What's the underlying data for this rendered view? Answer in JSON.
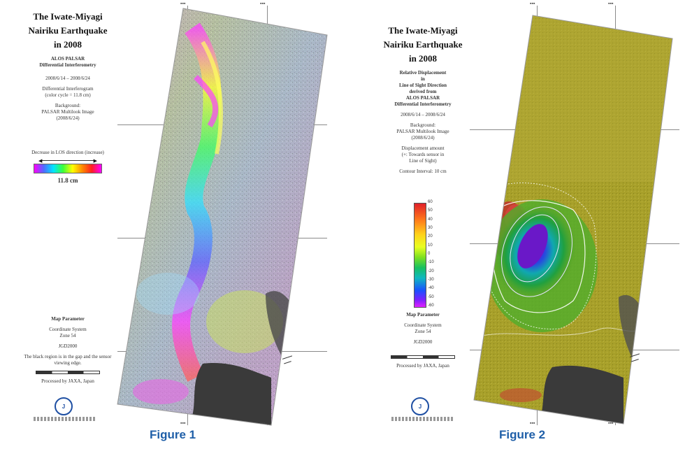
{
  "figure1": {
    "title_lines": [
      "The Iwate-Miyagi",
      "Nairiku Earthquake",
      "in 2008"
    ],
    "sensor": "ALOS PALSAR",
    "method": "Differential Interferometry",
    "dates": "2008/6/14 – 2008/6/24",
    "interferogram_lines": [
      "Differential Interferogram",
      "(color cycle = 11.8 cm)"
    ],
    "background_lines": [
      "Background:",
      "PALSAR Multilook Image",
      "(2008/6/24)"
    ],
    "scale_caption": "Decrease in LOS direction (increase)",
    "color_cycle": "11.8 cm",
    "map_params_title": "Map Parameter",
    "projection_lines": [
      "Coordinate System",
      "Zone 54"
    ],
    "datum": "JGD2000",
    "footnote": "The black region is in the gap and the sensor viewing edge.",
    "processed_by": "Processed by JAXA, Japan",
    "label": "Figure 1"
  },
  "figure2": {
    "title_lines": [
      "The Iwate-Miyagi",
      "Nairiku Earthquake",
      "in 2008"
    ],
    "description_lines": [
      "Relative Displacement",
      "in",
      "Line of Sight Direction",
      "derived from",
      "ALOS PALSAR",
      "Differential Interferometry"
    ],
    "dates": "2008/6/14 – 2008/6/24",
    "background_lines": [
      "Background:",
      "PALSAR Multilook Image",
      "(2008/6/24)"
    ],
    "displacement_lines": [
      "Displacement amount",
      "(+: Towards sensor in",
      "Line of Sight)"
    ],
    "contour_interval": "Contour Interval: 10 cm",
    "colorbar_ticks": [
      "60",
      "50",
      "40",
      "30",
      "20",
      "10",
      "0",
      "-10",
      "-20",
      "-30",
      "-40",
      "-50",
      "-60"
    ],
    "map_params_title": "Map Parameter",
    "projection_lines": [
      "Coordinate System",
      "Zone 54"
    ],
    "datum": "JGD2000",
    "processed_by": "Processed by JAXA, Japan",
    "label": "Figure 2"
  },
  "colors": {
    "figure_label": "#1f5fa8"
  }
}
